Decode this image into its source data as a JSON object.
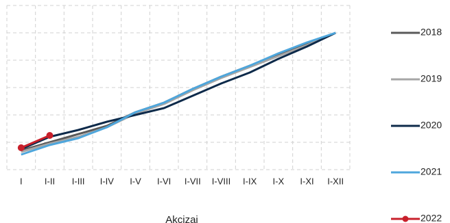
{
  "chart_data": {
    "type": "line",
    "title": "Akcizai",
    "categories": [
      "I",
      "I-II",
      "I-III",
      "I-IV",
      "I-V",
      "I-VI",
      "I-VII",
      "I-VIII",
      "I-IX",
      "I-X",
      "I-XI",
      "I-XII"
    ],
    "ylim": [
      0,
      6
    ],
    "grid": true,
    "legend": "right",
    "series": [
      {
        "name": "2018",
        "color": "#595959",
        "values": [
          0.7,
          1.0,
          1.3,
          1.6,
          2.1,
          2.45,
          2.95,
          3.4,
          3.8,
          4.2,
          4.6,
          5.0
        ]
      },
      {
        "name": "2019",
        "color": "#a6a6a6",
        "values": [
          0.65,
          0.95,
          1.2,
          1.55,
          2.05,
          2.4,
          2.9,
          3.35,
          3.75,
          4.15,
          4.55,
          5.0
        ]
      },
      {
        "name": "2020",
        "color": "#0d2a4a",
        "values": [
          0.75,
          1.2,
          1.45,
          1.75,
          2.0,
          2.25,
          2.7,
          3.15,
          3.55,
          4.05,
          4.5,
          5.0
        ]
      },
      {
        "name": "2021",
        "color": "#4ea6dc",
        "values": [
          0.55,
          0.9,
          1.15,
          1.55,
          2.1,
          2.45,
          2.95,
          3.4,
          3.8,
          4.25,
          4.65,
          5.0
        ]
      },
      {
        "name": "2022",
        "color": "#c8202b",
        "values": [
          0.8,
          1.25,
          null,
          null,
          null,
          null,
          null,
          null,
          null,
          null,
          null,
          null
        ],
        "markers": true
      }
    ]
  }
}
